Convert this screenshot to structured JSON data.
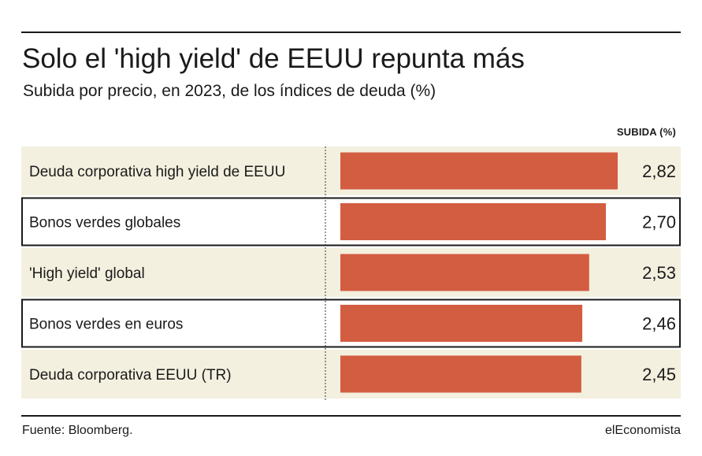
{
  "title": "Solo el 'high yield' de EEUU repunta más",
  "subtitle": "Subida por precio, en 2023, de los índices de deuda (%)",
  "column_header": "SUBIDA (%)",
  "source": "Fuente: Bloomberg.",
  "brand": "elEconomista",
  "colors": {
    "bar": "#d35d41",
    "row_bg": "#f4f0df",
    "highlight_border": "#1a1a1a"
  },
  "chart_data": {
    "type": "bar",
    "orientation": "horizontal",
    "categories": [
      "Deuda corporativa high yield de EEUU",
      "Bonos verdes globales",
      " 'High yield' global",
      "Bonos verdes en euros",
      "Deuda corporativa EEUU (TR)"
    ],
    "values": [
      2.82,
      2.7,
      2.53,
      2.46,
      2.45
    ],
    "value_labels": [
      "2,82",
      "2,70",
      "2,53",
      "2,46",
      "2,45"
    ],
    "highlighted": [
      false,
      true,
      false,
      true,
      false
    ],
    "xlim": [
      0,
      2.82
    ],
    "grid": false
  }
}
